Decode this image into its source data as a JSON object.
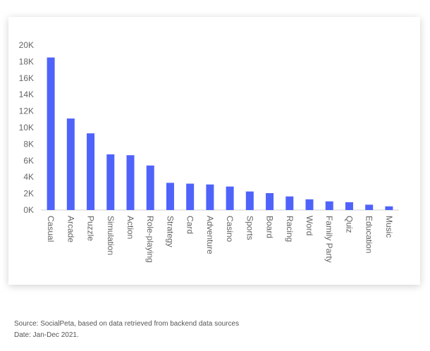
{
  "chart_data": {
    "type": "bar",
    "categories": [
      "Casual",
      "Arcade",
      "Puzzle",
      "Simulation",
      "Action",
      "Role-playing",
      "Strategy",
      "Card",
      "Adventure",
      "Casino",
      "Sports",
      "Board",
      "Racing",
      "Word",
      "Family Party",
      "Quiz",
      "Education",
      "Music"
    ],
    "values": [
      18500,
      11100,
      9300,
      6750,
      6650,
      5400,
      3300,
      3200,
      3100,
      2850,
      2250,
      2050,
      1650,
      1300,
      1050,
      950,
      650,
      450
    ],
    "title": "",
    "xlabel": "",
    "ylabel": "",
    "ylim": [
      0,
      20000
    ],
    "yticks": [
      "0K",
      "2K",
      "4K",
      "6K",
      "8K",
      "10K",
      "12K",
      "14K",
      "16K",
      "18K",
      "20K"
    ],
    "grid": false,
    "bar_color": "#4F63FB"
  },
  "footer": {
    "source": "Source: SocialPeta, based on data retrieved from backend data sources",
    "date": "Date: Jan-Dec 2021."
  }
}
